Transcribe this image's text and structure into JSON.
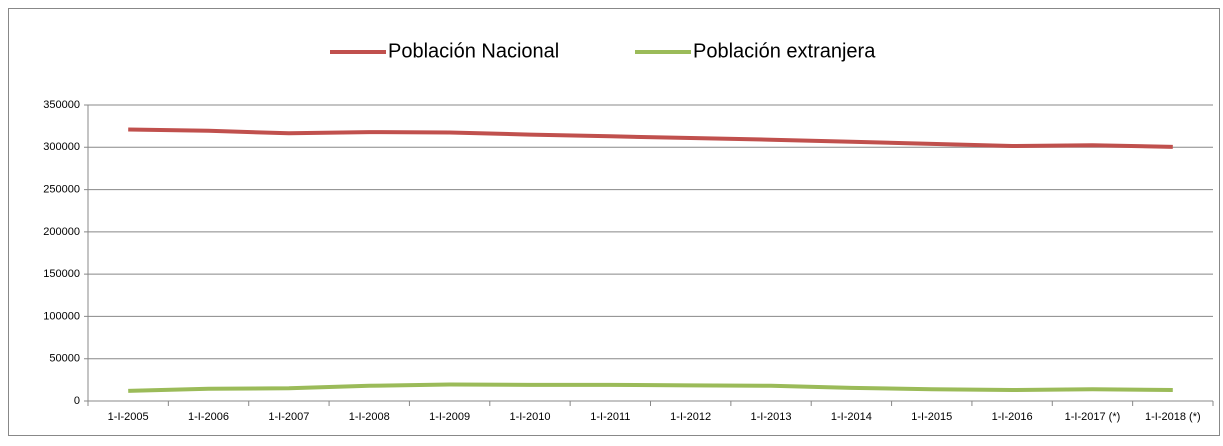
{
  "chart_data": {
    "type": "line",
    "categories": [
      "1-I-2005",
      "1-I-2006",
      "1-I-2007",
      "1-I-2008",
      "1-I-2009",
      "1-I-2010",
      "1-I-2011",
      "1-I-2012",
      "1-I-2013",
      "1-I-2014",
      "1-I-2015",
      "1-I-2016",
      "1-I-2017 (*)",
      "1-I-2018 (*)"
    ],
    "series": [
      {
        "name": "Población Nacional",
        "color": "#c0504d",
        "values": [
          321000,
          319500,
          316500,
          318000,
          317500,
          315000,
          313000,
          311000,
          309000,
          306500,
          304000,
          301500,
          302500,
          300500
        ]
      },
      {
        "name": "Población extranjera",
        "color": "#9bbb59",
        "values": [
          12000,
          14500,
          15000,
          18000,
          19500,
          19000,
          19000,
          18500,
          18000,
          15500,
          14000,
          13000,
          14000,
          13000
        ]
      }
    ],
    "ylim": [
      0,
      350000
    ],
    "yticks": [
      0,
      50000,
      100000,
      150000,
      200000,
      250000,
      300000,
      350000
    ],
    "grid": true
  }
}
